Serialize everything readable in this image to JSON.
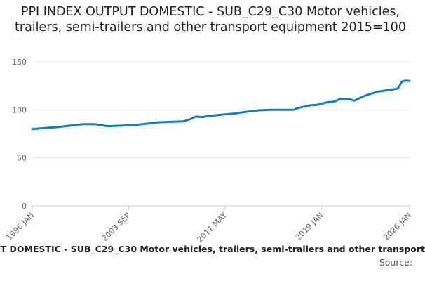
{
  "chart_data": {
    "type": "line",
    "title": "PPI INDEX OUTPUT DOMESTIC - SUB_C29_C30 Motor vehicles, trailers, semi-trailers and other transport equipment 2015=100",
    "legend_text": "T DOMESTIC - SUB_C29_C30 Motor vehicles, trailers, semi-trailers and other transport",
    "source_label": "Source:",
    "ylim": [
      0,
      150
    ],
    "yticks": [
      "0",
      "50",
      "100",
      "150"
    ],
    "xlim": [
      1996.0,
      2026.0
    ],
    "xticks": [
      {
        "label": "1996 JAN",
        "x": 1996.0
      },
      {
        "label": "2003 SEP",
        "x": 2003.67
      },
      {
        "label": "2011 MAY",
        "x": 2011.33
      },
      {
        "label": "2019 JAN",
        "x": 2019.0
      },
      {
        "label": "2026 JAN",
        "x": 2026.0
      }
    ],
    "grid": true,
    "series": [
      {
        "color": "#0f7fc0",
        "x": [
          1996.0,
          1997.0,
          1998.0,
          1999.0,
          2000.0,
          2001.0,
          2002.0,
          2003.0,
          2004.0,
          2005.0,
          2006.0,
          2007.0,
          2008.0,
          2008.5,
          2009.0,
          2009.5,
          2010.0,
          2011.0,
          2012.0,
          2013.0,
          2014.0,
          2015.0,
          2016.0,
          2016.8,
          2017.0,
          2018.0,
          2018.3,
          2018.5,
          2018.8,
          2019.0,
          2019.5,
          2020.0,
          2020.5,
          2020.8,
          2021.0,
          2021.3,
          2021.6,
          2022.0,
          2022.5,
          2023.0,
          2023.5,
          2024.0,
          2024.5,
          2025.0,
          2025.1,
          2025.4,
          2025.7,
          2026.0
        ],
        "values": [
          80,
          81,
          82,
          83.5,
          85,
          85,
          83,
          83.5,
          84,
          85.5,
          87,
          87.5,
          88,
          90,
          93,
          92.5,
          93.5,
          95,
          96,
          98,
          99.5,
          100,
          100,
          100,
          101.5,
          104.5,
          105,
          105,
          105.5,
          106.5,
          108,
          108.5,
          111.5,
          111,
          111,
          111,
          109.5,
          112,
          115,
          117,
          119,
          120,
          121,
          122,
          123,
          129.5,
          130.5,
          130
        ]
      }
    ]
  }
}
